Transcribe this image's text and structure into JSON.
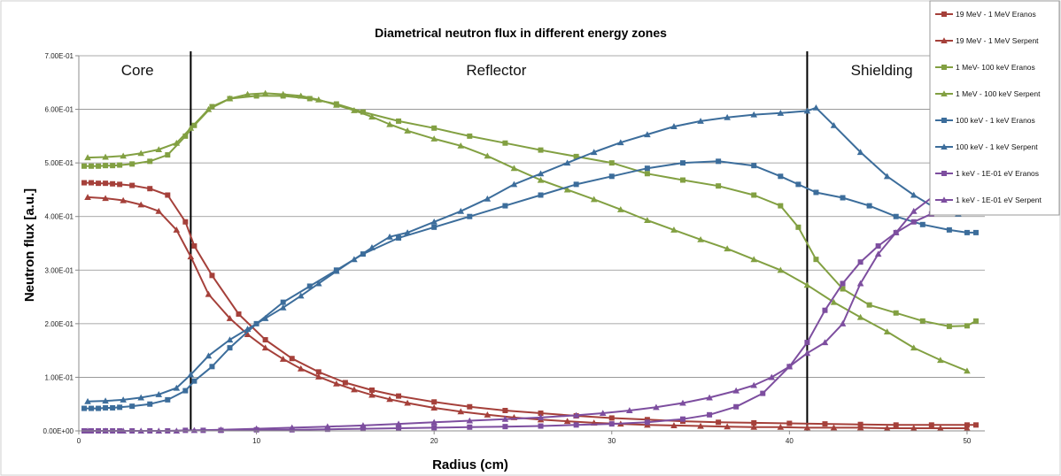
{
  "chart_data": {
    "type": "line",
    "title": "Diametrical neutron flux in different energy zones",
    "xlabel": "Radius (cm)",
    "ylabel": "Neutron flux [a.u.]",
    "xlim": [
      0,
      51
    ],
    "ylim": [
      0,
      0.7
    ],
    "x_ticks": [
      0,
      10,
      20,
      30,
      40,
      50
    ],
    "x_tick_labels": [
      "0",
      "10",
      "20",
      "30",
      "40",
      "50"
    ],
    "y_ticks": [
      0,
      0.1,
      0.2,
      0.3,
      0.4,
      0.5,
      0.6,
      0.7
    ],
    "y_tick_labels": [
      "0.00E+00",
      "1.00E-01",
      "2.00E-01",
      "3.00E-01",
      "4.00E-01",
      "5.00E-01",
      "6.00E-01",
      "7.00E-01"
    ],
    "grid": "horizontal",
    "legend_position": "top-right",
    "zones": [
      {
        "label": "Core",
        "label_x": 3.3
      },
      {
        "label": "Reflector",
        "label_x": 23.5
      },
      {
        "label": "Shielding",
        "label_x": 45.2
      }
    ],
    "zone_boundaries": [
      6.3,
      41
    ],
    "series": [
      {
        "name": "19 MeV - 1 MeV Eranos",
        "color": "#a5403a",
        "marker": "square",
        "x": [
          0.3,
          0.7,
          1.1,
          1.5,
          1.9,
          2.3,
          3,
          4,
          5,
          6,
          6.5,
          7.5,
          9,
          10.5,
          12,
          13.5,
          15,
          16.5,
          18,
          20,
          22,
          24,
          26,
          28,
          30,
          32,
          34,
          36,
          38,
          40,
          42,
          44,
          46,
          48,
          50,
          50.5
        ],
        "y": [
          0.463,
          0.463,
          0.462,
          0.462,
          0.461,
          0.46,
          0.458,
          0.452,
          0.44,
          0.39,
          0.345,
          0.29,
          0.218,
          0.17,
          0.135,
          0.11,
          0.09,
          0.076,
          0.065,
          0.054,
          0.045,
          0.038,
          0.033,
          0.028,
          0.024,
          0.021,
          0.018,
          0.016,
          0.015,
          0.014,
          0.013,
          0.012,
          0.011,
          0.011,
          0.011,
          0.011
        ]
      },
      {
        "name": "19 MeV - 1 MeV Serpent",
        "color": "#a5403a",
        "marker": "triangle",
        "x": [
          0.5,
          1.5,
          2.5,
          3.5,
          4.5,
          5.5,
          6.3,
          7.3,
          8.5,
          9.5,
          10.5,
          11.5,
          12.5,
          13.5,
          14.5,
          15.5,
          16.5,
          17.5,
          18.5,
          20,
          21.5,
          23,
          24.5,
          26,
          27.5,
          29,
          30.5,
          32,
          33.5,
          35,
          36.5,
          38,
          39.5,
          41,
          42.5,
          44,
          45.5,
          47,
          48.5,
          50
        ],
        "y": [
          0.436,
          0.434,
          0.43,
          0.422,
          0.41,
          0.375,
          0.325,
          0.255,
          0.21,
          0.18,
          0.155,
          0.134,
          0.116,
          0.101,
          0.088,
          0.077,
          0.067,
          0.059,
          0.052,
          0.043,
          0.036,
          0.03,
          0.025,
          0.021,
          0.018,
          0.015,
          0.013,
          0.011,
          0.01,
          0.009,
          0.008,
          0.007,
          0.007,
          0.006,
          0.006,
          0.006,
          0.005,
          0.005,
          0.005,
          0.005
        ]
      },
      {
        "name": "1 MeV- 100 keV Eranos",
        "color": "#82a042",
        "marker": "square",
        "x": [
          0.3,
          0.7,
          1.1,
          1.5,
          1.9,
          2.3,
          3,
          4,
          5,
          6,
          6.5,
          7.5,
          8.5,
          10,
          11.5,
          13,
          14.5,
          16,
          18,
          20,
          22,
          24,
          26,
          28,
          30,
          32,
          34,
          36,
          38,
          39.5,
          40.5,
          41.5,
          43,
          44.5,
          46,
          47.5,
          49,
          50,
          50.5
        ],
        "y": [
          0.494,
          0.494,
          0.494,
          0.495,
          0.495,
          0.496,
          0.498,
          0.503,
          0.515,
          0.55,
          0.57,
          0.605,
          0.62,
          0.625,
          0.625,
          0.62,
          0.61,
          0.595,
          0.578,
          0.565,
          0.55,
          0.537,
          0.524,
          0.512,
          0.5,
          0.48,
          0.468,
          0.457,
          0.44,
          0.42,
          0.38,
          0.32,
          0.265,
          0.235,
          0.22,
          0.205,
          0.195,
          0.196,
          0.205
        ]
      },
      {
        "name": "1 MeV - 100 keV Serpent",
        "color": "#82a042",
        "marker": "triangle",
        "x": [
          0.5,
          1.5,
          2.5,
          3.5,
          4.5,
          5.5,
          6.3,
          7.3,
          8.5,
          9.5,
          10.5,
          11.5,
          12.5,
          13.5,
          14.5,
          15.5,
          16.5,
          17.5,
          18.5,
          20,
          21.5,
          23,
          24.5,
          26,
          27.5,
          29,
          30.5,
          32,
          33.5,
          35,
          36.5,
          38,
          39.5,
          41,
          42.5,
          44,
          45.5,
          47,
          48.5,
          50
        ],
        "y": [
          0.51,
          0.511,
          0.513,
          0.518,
          0.525,
          0.537,
          0.565,
          0.6,
          0.62,
          0.628,
          0.63,
          0.628,
          0.625,
          0.618,
          0.608,
          0.598,
          0.586,
          0.572,
          0.56,
          0.545,
          0.532,
          0.513,
          0.49,
          0.468,
          0.45,
          0.432,
          0.413,
          0.393,
          0.375,
          0.357,
          0.34,
          0.32,
          0.3,
          0.272,
          0.24,
          0.212,
          0.185,
          0.155,
          0.132,
          0.112
        ]
      },
      {
        "name": "100 keV - 1 keV Eranos",
        "color": "#3c6d9b",
        "marker": "square",
        "x": [
          0.3,
          0.7,
          1.1,
          1.5,
          1.9,
          2.3,
          3,
          4,
          5,
          6,
          6.5,
          7.5,
          8.5,
          10,
          11.5,
          13,
          14.5,
          16,
          18,
          20,
          22,
          24,
          26,
          28,
          30,
          32,
          34,
          36,
          38,
          39.5,
          40.5,
          41.5,
          43,
          44.5,
          46,
          47.5,
          49,
          50,
          50.5
        ],
        "y": [
          0.042,
          0.042,
          0.042,
          0.043,
          0.043,
          0.044,
          0.046,
          0.05,
          0.058,
          0.075,
          0.093,
          0.12,
          0.155,
          0.2,
          0.24,
          0.27,
          0.3,
          0.33,
          0.36,
          0.38,
          0.4,
          0.42,
          0.44,
          0.46,
          0.475,
          0.49,
          0.5,
          0.503,
          0.495,
          0.475,
          0.46,
          0.445,
          0.435,
          0.42,
          0.4,
          0.385,
          0.375,
          0.37,
          0.37
        ]
      },
      {
        "name": "100 keV - 1 keV Serpent",
        "color": "#3c6d9b",
        "marker": "triangle",
        "x": [
          0.5,
          1.5,
          2.5,
          3.5,
          4.5,
          5.5,
          6.3,
          7.3,
          8.5,
          9.5,
          10.5,
          11.5,
          12.5,
          13.5,
          14.5,
          15.5,
          16.5,
          17.5,
          18.5,
          20,
          21.5,
          23,
          24.5,
          26,
          27.5,
          29,
          30.5,
          32,
          33.5,
          35,
          36.5,
          38,
          39.5,
          41,
          41.5,
          42.5,
          44,
          45.5,
          47,
          48.5,
          49.5
        ],
        "y": [
          0.055,
          0.056,
          0.058,
          0.062,
          0.068,
          0.08,
          0.105,
          0.14,
          0.17,
          0.19,
          0.21,
          0.23,
          0.252,
          0.275,
          0.298,
          0.32,
          0.342,
          0.362,
          0.37,
          0.39,
          0.41,
          0.433,
          0.46,
          0.48,
          0.5,
          0.52,
          0.538,
          0.553,
          0.568,
          0.578,
          0.585,
          0.59,
          0.593,
          0.597,
          0.603,
          0.57,
          0.52,
          0.475,
          0.44,
          0.41,
          0.405
        ]
      },
      {
        "name": "1 keV - 1E-01 eV Eranos",
        "color": "#7d4e9f",
        "marker": "square",
        "x": [
          0.3,
          0.7,
          1.1,
          1.5,
          1.9,
          2.3,
          3,
          4,
          5,
          6,
          7,
          8,
          10,
          12,
          14,
          16,
          18,
          20,
          22,
          24,
          26,
          28,
          30,
          32,
          34,
          35.5,
          37,
          38.5,
          40,
          41,
          42,
          43,
          44,
          45,
          46,
          47,
          48,
          49,
          50,
          50.5
        ],
        "y": [
          0,
          0,
          0,
          0,
          0,
          0,
          0,
          0,
          0,
          0.001,
          0.001,
          0.001,
          0.002,
          0.002,
          0.003,
          0.004,
          0.005,
          0.006,
          0.007,
          0.008,
          0.009,
          0.011,
          0.013,
          0.016,
          0.022,
          0.03,
          0.045,
          0.07,
          0.12,
          0.165,
          0.225,
          0.275,
          0.315,
          0.345,
          0.37,
          0.39,
          0.405,
          0.418,
          0.42,
          0.41
        ]
      },
      {
        "name": "1 keV - 1E-01 eV Serpent",
        "color": "#7d4e9f",
        "marker": "triangle",
        "x": [
          0.5,
          1.5,
          2.5,
          3.5,
          4.5,
          5.5,
          6.5,
          8,
          10,
          12,
          14,
          16,
          18,
          20,
          22,
          24,
          26,
          28,
          29.5,
          31,
          32.5,
          34,
          35.5,
          37,
          38,
          39,
          40,
          41,
          42,
          43,
          44,
          45,
          46,
          47,
          48,
          49,
          49.5
        ],
        "y": [
          0,
          0,
          0,
          0,
          0,
          0,
          0.001,
          0.002,
          0.004,
          0.006,
          0.008,
          0.01,
          0.013,
          0.016,
          0.019,
          0.022,
          0.025,
          0.029,
          0.033,
          0.038,
          0.044,
          0.052,
          0.062,
          0.075,
          0.085,
          0.1,
          0.12,
          0.145,
          0.165,
          0.2,
          0.275,
          0.33,
          0.37,
          0.41,
          0.435,
          0.465,
          0.48
        ]
      }
    ]
  }
}
